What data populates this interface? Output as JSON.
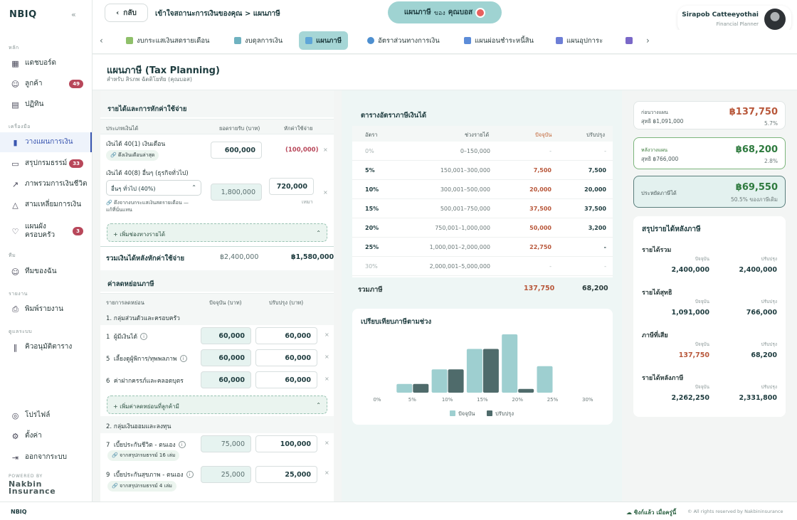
{
  "brand": "NBIQ",
  "nav": {
    "sec_main": "หลัก",
    "sec_tools": "เครื่องมือ",
    "sec_team": "ทีม",
    "sec_report": "รายงาน",
    "sec_admin": "ดูแลระบบ",
    "dashboard": "แดชบอร์ด",
    "customers": "ลูกค้า",
    "customers_badge": "49",
    "calendar": "ปฏิทิน",
    "planning": "วางแผนการเงิน",
    "summary": "สรุปกรมธรรม์",
    "summary_badge": "33",
    "overview": "ภาพรวมการเงินชีวิต",
    "triangle": "สามเหลี่ยมการเงิน",
    "family_1": "แผนผัง",
    "family_2": "ครอบครัว",
    "family_badge": "3",
    "myteam": "ทีมของฉัน",
    "print": "พิมพ์รายงาน",
    "queue": "คิวอนุมัติตาราง",
    "profile": "โปรไฟล์",
    "settings": "ตั้งค่า",
    "logout": "ออกจากระบบ"
  },
  "powered_by": "POWERED BY",
  "nakbin_1": "Nakbin",
  "nakbin_2": "Insurance",
  "topbar": {
    "back": "กลับ",
    "breadcrumb": "เข้าใจสถานะการเงินของคุณ > แผนภาษี",
    "pill_main": "แผนภาษี",
    "pill_of": "ของ",
    "pill_name": "คุณบอส"
  },
  "user": {
    "name": "Sirapob Catteeyothai",
    "role": "Financial Planner"
  },
  "tabs": [
    {
      "label": "งบกระแสเงินสดรายเดือน",
      "color": "#8fc06a"
    },
    {
      "label": "งบดุลการเงิน",
      "color": "#6fb2c0"
    },
    {
      "label": "แผนภาษี",
      "color": "#5fa6d8"
    },
    {
      "label": "อัตราส่วนทางการเงิน",
      "color": "#4d8fd0"
    },
    {
      "label": "แผนผ่อนชำระหนี้สิน",
      "color": "#5c8cd8"
    },
    {
      "label": "แผนอุปการะ",
      "color": "#6d7ed6"
    },
    {
      "label": "",
      "color": "#7a68c8"
    }
  ],
  "page": {
    "title": "แผนภาษี (Tax Planning)",
    "subtitle": "สำหรับ สิรภพ ฉัตติโยทัย (คุณบอส)"
  },
  "income": {
    "header": "รายได้และการหักค่าใช้จ่าย",
    "col_type": "ประเภทเงินได้",
    "col_amount": "ยอดรายรับ (บาท)",
    "col_deduct": "หักค่าใช้จ่าย",
    "row1_label": "เงินได้ 40(1) เงินเดือน",
    "row1_chip": "🔗 ดึงเงินเดือนล่าสุด",
    "row1_amount": "600,000",
    "row1_deduct": "(100,000)",
    "row2_label": "เงินได้ 40(8) อื่นๆ (ธุรกิจทั่วไป)",
    "row2_select": "อื่นๆ ทั่วไป (40%)",
    "row2_amount": "1,800,000",
    "row2_deduct": "720,000",
    "row2_unit": "เหมา",
    "row2_link_1": "🔗 ดึงจากงบกระแสเงินสดรายเดือน —",
    "row2_link_2": "แก้ที่นั่นแทน",
    "add": "+ เพิ่มช่องทางรายได้",
    "total_label": "รวมเงินได้หลังหักค่าใช้จ่าย",
    "total_current": "฿2,400,000",
    "total_adjusted": "฿1,580,000"
  },
  "deduct": {
    "header": "ค่าลดหย่อนภาษี",
    "col_list": "รายการลดหย่อน",
    "col_current": "ปัจจุบัน (บาท)",
    "col_adjusted": "ปรับปรุง (บาท)",
    "group1": "1. กลุ่มส่วนตัวและครอบครัว",
    "items1": [
      {
        "no": "1",
        "label": "ผู้มีเงินได้",
        "current": "60,000",
        "adjusted": "60,000"
      },
      {
        "no": "5",
        "label": "เลี้ยงดูผู้พิการ/ทุพพลภาพ",
        "current": "60,000",
        "adjusted": "60,000"
      },
      {
        "no": "6",
        "label": "ค่าฝากครรภ์และคลอดบุตร",
        "current": "60,000",
        "adjusted": "60,000"
      }
    ],
    "add": "+ เพิ่มค่าลดหย่อนที่ลูกค้ามี",
    "group2": "2. กลุ่มเงินออมและลงทุน",
    "items2": [
      {
        "no": "7",
        "label": "เบี้ยประกันชีวิต - ตนเอง",
        "chip": "🔗 จากสรุปกรมธรรม์ 16 เล่ม",
        "current": "75,000",
        "adjusted": "100,000"
      },
      {
        "no": "9",
        "label": "เบี้ยประกันสุขภาพ - ตนเอง",
        "chip": "🔗 จากสรุปกรมธรรม์ 4 เล่ม",
        "current": "25,000",
        "adjusted": "25,000"
      }
    ]
  },
  "rates": {
    "title": "ตารางอัตราภาษีเงินได้",
    "col_rate": "อัตรา",
    "col_range": "ช่วงรายได้",
    "col_current": "ปัจจุบัน",
    "col_adjusted": "ปรับปรุง",
    "rows": [
      {
        "rate": "0%",
        "range": "0–150,000",
        "current": "-",
        "adjusted": "-",
        "dim": true
      },
      {
        "rate": "5%",
        "range": "150,001–300,000",
        "current": "7,500",
        "adjusted": "7,500",
        "dim": false
      },
      {
        "rate": "10%",
        "range": "300,001–500,000",
        "current": "20,000",
        "adjusted": "20,000",
        "dim": false
      },
      {
        "rate": "15%",
        "range": "500,001–750,000",
        "current": "37,500",
        "adjusted": "37,500",
        "dim": false
      },
      {
        "rate": "20%",
        "range": "750,001–1,000,000",
        "current": "50,000",
        "adjusted": "3,200",
        "dim": false
      },
      {
        "rate": "25%",
        "range": "1,000,001–2,000,000",
        "current": "22,750",
        "adjusted": "-",
        "dim": false
      },
      {
        "rate": "30%",
        "range": "2,000,001–5,000,000",
        "current": "-",
        "adjusted": "-",
        "dim": true
      }
    ],
    "total_label": "รวมภาษี",
    "total_current": "137,750",
    "total_adjusted": "68,200"
  },
  "chart_data": {
    "type": "bar",
    "title": "เปรียบเทียบภาษีตามช่วง",
    "categories": [
      "0%",
      "5%",
      "10%",
      "15%",
      "20%",
      "25%",
      "30%"
    ],
    "series": [
      {
        "name": "ปัจจุบัน",
        "color": "#9ecfd0",
        "values": [
          0,
          7500,
          20000,
          37500,
          50000,
          22750,
          0
        ]
      },
      {
        "name": "ปรับปรุง",
        "color": "#4f6b6b",
        "values": [
          0,
          7500,
          20000,
          37500,
          3200,
          0,
          0
        ]
      }
    ],
    "xlabel": "",
    "ylabel": "",
    "ylim": [
      0,
      50000
    ],
    "grid": false,
    "legend": "bottom"
  },
  "right": {
    "before_label": "ก่อนวางแผน",
    "before_net": "สุทธิ ฿1,091,000",
    "before_tax": "฿137,750",
    "before_pct": "5.7%",
    "after_label": "หลังวางแผน",
    "after_net": "สุทธิ ฿766,000",
    "after_tax": "฿68,200",
    "after_pct": "2.8%",
    "saved_label": "ประหยัดภาษีได้",
    "saved_value": "฿69,550",
    "saved_pct": "50.5% ของภาษีเดิม",
    "sum_title": "สรุปรายได้หลังภาษี",
    "lbl_current": "ปัจจุบัน",
    "lbl_adjusted": "ปรับปรุง",
    "items": [
      {
        "label": "รายได้รวม",
        "current": "2,400,000",
        "adjusted": "2,400,000",
        "red": false
      },
      {
        "label": "รายได้สุทธิ",
        "current": "1,091,000",
        "adjusted": "766,000",
        "red": false
      },
      {
        "label": "ภาษีที่เสีย",
        "current": "137,750",
        "adjusted": "68,200",
        "red": true
      },
      {
        "label": "รายได้หลังภาษี",
        "current": "2,262,250",
        "adjusted": "2,331,800",
        "red": false
      }
    ]
  },
  "footer": {
    "brand": "NBIQ",
    "sync": "ซิงก์แล้ว เมื่อครู่นี้",
    "copyright": "© All rights reserved by Nakbininsurance"
  }
}
